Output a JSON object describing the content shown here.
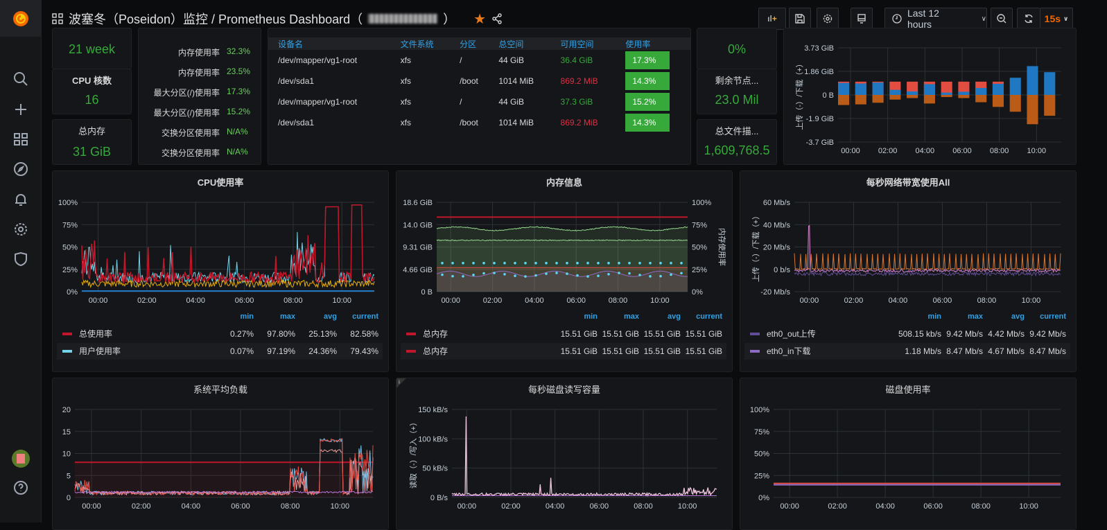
{
  "header": {
    "title": "波塞冬（Poseidon）监控 / Prometheus Dashboard（",
    "title_end": "）",
    "time_range": "Last 12 hours",
    "refresh": "15s",
    "buttons": [
      "add-panel",
      "save",
      "settings",
      "tv-mode",
      "zoom-out",
      "refresh"
    ]
  },
  "sidebar": {
    "items": [
      "search",
      "create",
      "dashboards",
      "explore",
      "alerting",
      "configuration",
      "server-admin"
    ],
    "bottom": [
      "avatar",
      "help"
    ]
  },
  "stats": {
    "uptime": "21 week",
    "cpu_label": "CPU 核数",
    "cpu_value": "16",
    "mem_label": "总内存",
    "mem_value": "31 GiB",
    "pct": "0%",
    "inodes_label": "剩余节点...",
    "inodes_value": "23.0 Mil",
    "fd_label": "总文件描...",
    "fd_value": "1,609,768.5"
  },
  "usage_list": [
    {
      "k": "内存使用率",
      "v": "32.3%"
    },
    {
      "k": "内存使用率",
      "v": "23.5%"
    },
    {
      "k": "最大分区(/)使用率",
      "v": "17.3%"
    },
    {
      "k": "最大分区(/)使用率",
      "v": "15.2%"
    },
    {
      "k": "交换分区使用率",
      "v": "N/A%"
    },
    {
      "k": "交换分区使用率",
      "v": "N/A%"
    }
  ],
  "disk_table": {
    "headers": [
      "设备名",
      "文件系统",
      "分区",
      "总空间",
      "可用空间",
      "使用率"
    ],
    "rows": [
      [
        "/dev/mapper/vg1-root",
        "xfs",
        "/",
        "44 GiB",
        "36.4 GiB",
        "17.3%"
      ],
      [
        "/dev/sda1",
        "xfs",
        "/boot",
        "1014 MiB",
        "869.2 MiB",
        "14.3%"
      ],
      [
        "/dev/mapper/vg1-root",
        "xfs",
        "/",
        "44 GiB",
        "37.3 GiB",
        "15.2%"
      ],
      [
        "/dev/sda1",
        "xfs",
        "/boot",
        "1014 MiB",
        "869.2 MiB",
        "14.3%"
      ]
    ],
    "free_colors": [
      "#37a93b",
      "#e02f44",
      "#37a93b",
      "#e02f44"
    ]
  },
  "legend_heads": [
    "min",
    "max",
    "avg",
    "current"
  ],
  "chart_data": [
    {
      "id": "net-total",
      "type": "bar",
      "title": "",
      "ylabel": "上传（-）/下载（+）",
      "yticks": [
        "3.73 GiB",
        "1.86 GiB",
        "0 B",
        "-1.9 GiB",
        "-3.7 GiB"
      ],
      "ylim": [
        -3.73,
        3.73
      ],
      "xticks": [
        "00:00",
        "02:00",
        "04:00",
        "06:00",
        "08:00",
        "10:00"
      ],
      "series": [
        {
          "color": "#1f78c1",
          "values": [
            0.95,
            0.9,
            0.98,
            0.4,
            0.28,
            0.85,
            0.18,
            0.25,
            0.55,
            0.88,
            1.36,
            2.28,
            1.8
          ]
        },
        {
          "color": "#e24d42",
          "values": [
            1.05,
            1.05,
            1.05,
            1.05,
            1.05,
            1.05,
            1.05,
            1.05,
            1.05,
            1.05,
            0,
            0,
            0
          ]
        },
        {
          "color": "#ba5b17",
          "values": [
            -0.8,
            -0.75,
            -0.62,
            -0.37,
            -0.25,
            -0.68,
            -0.17,
            -0.25,
            -0.58,
            -0.95,
            -1.33,
            -2.32,
            -1.65
          ]
        }
      ]
    },
    {
      "id": "cpu",
      "type": "line",
      "title": "CPU使用率",
      "yticks": [
        "100%",
        "75%",
        "50%",
        "25%",
        "0%"
      ],
      "xticks": [
        "00:00",
        "02:00",
        "04:00",
        "06:00",
        "08:00",
        "10:00"
      ],
      "legend": [
        {
          "name": "总使用率",
          "color": "#c4162a",
          "min": "0.27%",
          "max": "97.80%",
          "avg": "25.13%",
          "current": "82.58%"
        },
        {
          "name": "用户使用率",
          "color": "#73d3e8",
          "min": "0.07%",
          "max": "97.19%",
          "avg": "24.36%",
          "current": "79.43%"
        }
      ]
    },
    {
      "id": "mem",
      "type": "line",
      "title": "内存信息",
      "yticks": [
        "18.6 GiB",
        "14.0 GiB",
        "9.31 GiB",
        "4.66 GiB",
        "0 B"
      ],
      "y2ticks": [
        "100%",
        "75%",
        "50%",
        "25%",
        "0%"
      ],
      "y2label": "内存使用率",
      "xticks": [
        "00:00",
        "02:00",
        "04:00",
        "06:00",
        "08:00",
        "10:00"
      ],
      "legend": [
        {
          "name": "总内存",
          "color": "#c4162a",
          "min": "15.51 GiB",
          "max": "15.51 GiB",
          "avg": "15.51 GiB",
          "current": "15.51 GiB"
        },
        {
          "name": "总内存",
          "color": "#c4162a",
          "min": "15.51 GiB",
          "max": "15.51 GiB",
          "avg": "15.51 GiB",
          "current": "15.51 GiB"
        }
      ]
    },
    {
      "id": "net",
      "type": "line",
      "title": "每秒网络带宽使用All",
      "ylabel": "上传（-）/下载（+）",
      "yticks": [
        "60 Mb/s",
        "40 Mb/s",
        "20 Mb/s",
        "0 b/s",
        "-20 Mb/s"
      ],
      "xticks": [
        "00:00",
        "02:00",
        "04:00",
        "06:00",
        "08:00",
        "10:00"
      ],
      "legend": [
        {
          "name": "eth0_out上传",
          "color": "#614d93",
          "min": "508.15 kb/s",
          "max": "9.42 Mb/s",
          "avg": "4.42 Mb/s",
          "current": "9.42 Mb/s"
        },
        {
          "name": "eth0_in下载",
          "color": "#8f6ac2",
          "min": "1.18 Mb/s",
          "max": "8.47 Mb/s",
          "avg": "4.67 Mb/s",
          "current": "8.47 Mb/s"
        }
      ]
    },
    {
      "id": "load",
      "type": "line",
      "title": "系统平均负载",
      "yticks": [
        "20",
        "15",
        "10",
        "5",
        "0"
      ],
      "xticks": [
        "00:00",
        "02:00",
        "04:00",
        "06:00",
        "08:00",
        "10:00"
      ]
    },
    {
      "id": "diskio",
      "type": "line",
      "title": "每秒磁盘读写容量",
      "ylabel": "读取（-）/写入（+）",
      "yticks": [
        "150 kB/s",
        "100 kB/s",
        "50 kB/s",
        "0 B/s"
      ],
      "xticks": [
        "00:00",
        "02:00",
        "04:00",
        "06:00",
        "08:00",
        "10:00"
      ]
    },
    {
      "id": "diskuse",
      "type": "line",
      "title": "磁盘使用率",
      "yticks": [
        "100%",
        "75%",
        "50%",
        "25%",
        "0%"
      ],
      "xticks": [
        "00:00",
        "02:00",
        "04:00",
        "06:00",
        "08:00",
        "10:00"
      ]
    }
  ]
}
